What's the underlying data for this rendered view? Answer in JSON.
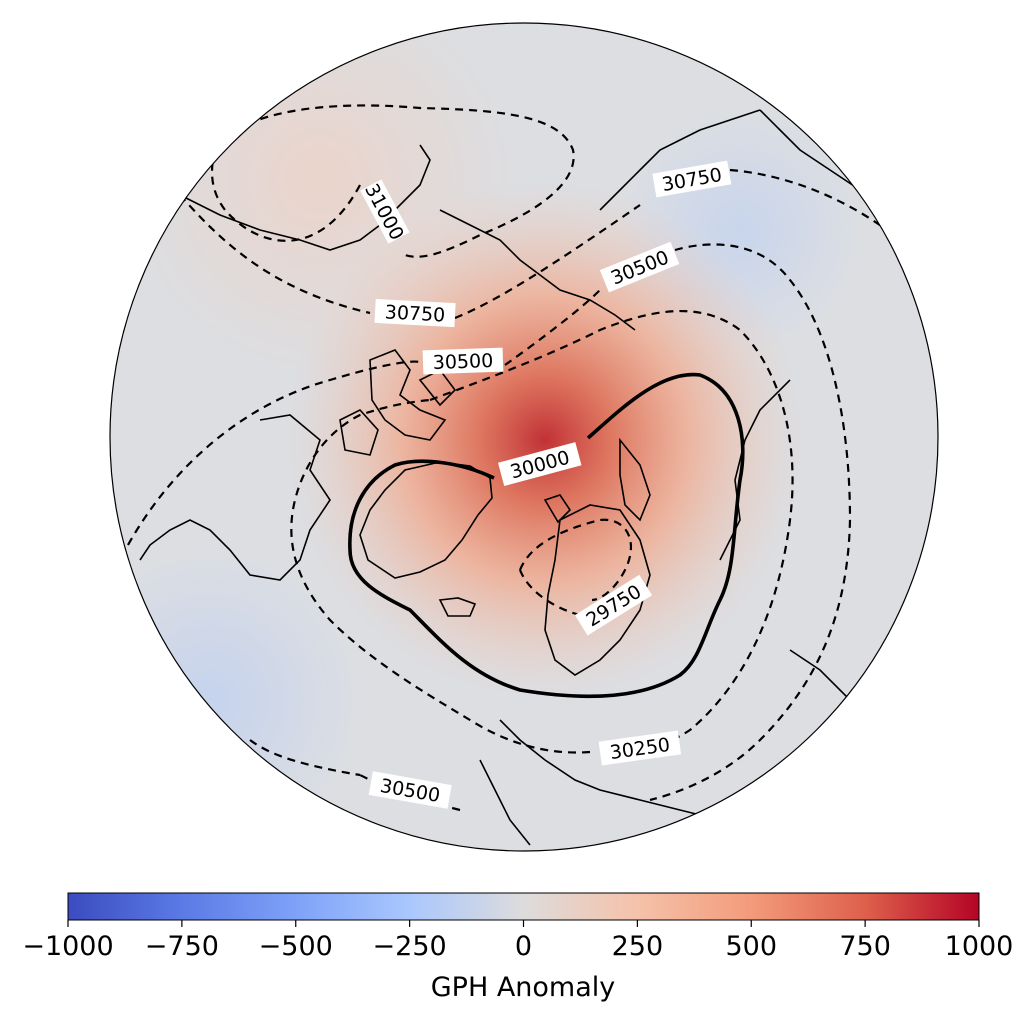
{
  "map": {
    "projection": "north-polar-stereographic",
    "field": "geopotential height anomaly (shaded) with geopotential height contours",
    "contour_labels": [
      {
        "id": "c31000",
        "text": "31000"
      },
      {
        "id": "c30750a",
        "text": "30750"
      },
      {
        "id": "c30750b",
        "text": "30750"
      },
      {
        "id": "c30500a",
        "text": "30500"
      },
      {
        "id": "c30500b",
        "text": "30500"
      },
      {
        "id": "c30500c",
        "text": "30500"
      },
      {
        "id": "c30000",
        "text": "30000"
      },
      {
        "id": "c29750",
        "text": "29750"
      },
      {
        "id": "c30250",
        "text": "30250"
      }
    ]
  },
  "colorbar": {
    "title": "GPH Anomaly",
    "ticks": [
      "−1000",
      "−750",
      "−500",
      "−250",
      "0",
      "250",
      "500",
      "750",
      "1000"
    ],
    "range": [
      -1000,
      1000
    ],
    "colormap": "coolwarm",
    "color_low": "#3b4cc0",
    "color_mid": "#dddddd",
    "color_high": "#b40426"
  }
}
